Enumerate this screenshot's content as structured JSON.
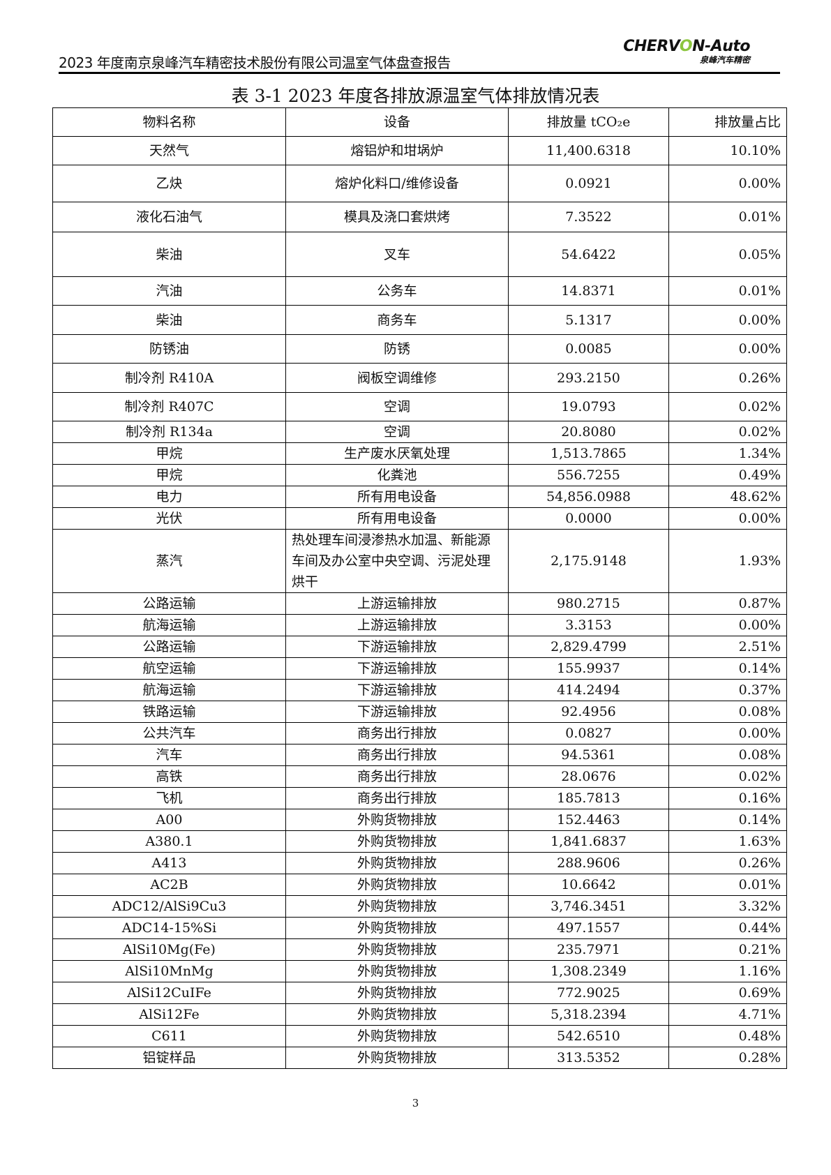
{
  "header": {
    "title": "2023 年度南京泉峰汽车精密技术股份有限公司温室气体盘查报告",
    "logo": {
      "en_pre": "CHERV",
      "en_o": "O",
      "en_post": "N-Auto",
      "cn": "泉峰汽车精密"
    }
  },
  "caption": "表 3-1 2023 年度各排放源温室气体排放情况表",
  "table": {
    "headers": [
      "物料名称",
      "设备",
      "排放量 tCO₂e",
      "排放量占比"
    ],
    "rows": [
      [
        "天然气",
        "熔铝炉和坩埚炉",
        "11,400.6318",
        "10.10%"
      ],
      [
        "乙炔",
        "熔炉化料口/维修设备",
        "0.0921",
        "0.00%"
      ],
      [
        "液化石油气",
        "模具及浇口套烘烤",
        "7.3522",
        "0.01%"
      ],
      [
        "柴油",
        "叉车",
        "54.6422",
        "0.05%"
      ],
      [
        "汽油",
        "公务车",
        "14.8371",
        "0.01%"
      ],
      [
        "柴油",
        "商务车",
        "5.1317",
        "0.00%"
      ],
      [
        "防锈油",
        "防锈",
        "0.0085",
        "0.00%"
      ],
      [
        "制冷剂 R410A",
        "阀板空调维修",
        "293.2150",
        "0.26%"
      ],
      [
        "制冷剂 R407C",
        "空调",
        "19.0793",
        "0.02%"
      ],
      [
        "制冷剂 R134a",
        "空调",
        "20.8080",
        "0.02%"
      ],
      [
        "甲烷",
        "生产废水厌氧处理",
        "1,513.7865",
        "1.34%"
      ],
      [
        "甲烷",
        "化粪池",
        "556.7255",
        "0.49%"
      ],
      [
        "电力",
        "所有用电设备",
        "54,856.0988",
        "48.62%"
      ],
      [
        "光伏",
        "所有用电设备",
        "0.0000",
        "0.00%"
      ],
      [
        "蒸汽",
        "热处理车间浸渗热水加温、新能源车间及办公室中央空调、污泥处理烘干",
        "2,175.9148",
        "1.93%"
      ],
      [
        "公路运输",
        "上游运输排放",
        "980.2715",
        "0.87%"
      ],
      [
        "航海运输",
        "上游运输排放",
        "3.3153",
        "0.00%"
      ],
      [
        "公路运输",
        "下游运输排放",
        "2,829.4799",
        "2.51%"
      ],
      [
        "航空运输",
        "下游运输排放",
        "155.9937",
        "0.14%"
      ],
      [
        "航海运输",
        "下游运输排放",
        "414.2494",
        "0.37%"
      ],
      [
        "铁路运输",
        "下游运输排放",
        "92.4956",
        "0.08%"
      ],
      [
        "公共汽车",
        "商务出行排放",
        "0.0827",
        "0.00%"
      ],
      [
        "汽车",
        "商务出行排放",
        "94.5361",
        "0.08%"
      ],
      [
        "高铁",
        "商务出行排放",
        "28.0676",
        "0.02%"
      ],
      [
        "飞机",
        "商务出行排放",
        "185.7813",
        "0.16%"
      ],
      [
        "A00",
        "外购货物排放",
        "152.4463",
        "0.14%"
      ],
      [
        "A380.1",
        "外购货物排放",
        "1,841.6837",
        "1.63%"
      ],
      [
        "A413",
        "外购货物排放",
        "288.9606",
        "0.26%"
      ],
      [
        "AC2B",
        "外购货物排放",
        "10.6642",
        "0.01%"
      ],
      [
        "ADC12/AlSi9Cu3",
        "外购货物排放",
        "3,746.3451",
        "3.32%"
      ],
      [
        "ADC14-15%Si",
        "外购货物排放",
        "497.1557",
        "0.44%"
      ],
      [
        "AlSi10Mg(Fe)",
        "外购货物排放",
        "235.7971",
        "0.21%"
      ],
      [
        "AlSi10MnMg",
        "外购货物排放",
        "1,308.2349",
        "1.16%"
      ],
      [
        "AlSi12CuIFe",
        "外购货物排放",
        "772.9025",
        "0.69%"
      ],
      [
        "AlSi12Fe",
        "外购货物排放",
        "5,318.2394",
        "4.71%"
      ],
      [
        "C611",
        "外购货物排放",
        "542.6510",
        "0.48%"
      ],
      [
        "铝锭样品",
        "外购货物排放",
        "313.5352",
        "0.28%"
      ]
    ]
  },
  "page_number": "3"
}
